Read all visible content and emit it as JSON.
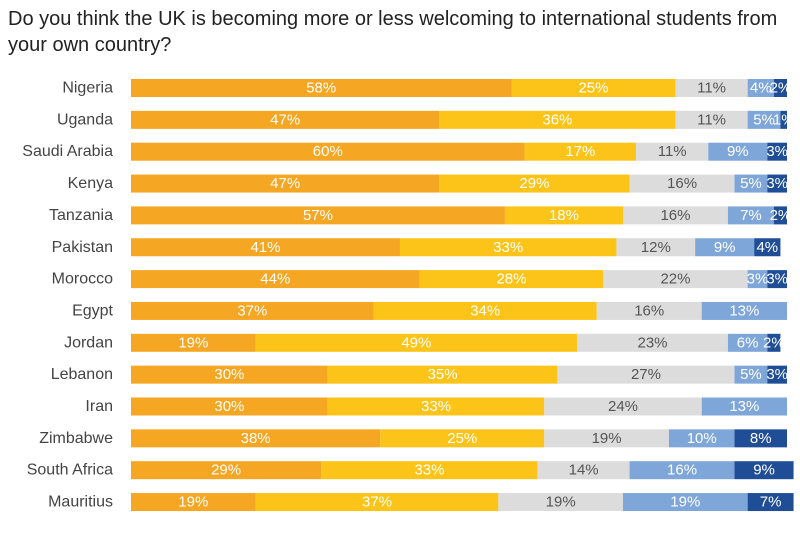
{
  "chart_data": {
    "type": "bar",
    "orientation": "horizontal",
    "stacked": true,
    "title": "Do you think the UK is becoming more or less welcoming to international students from your own country?",
    "xlabel": "",
    "ylabel": "",
    "xlim": [
      0,
      100
    ],
    "grid": false,
    "legend": "none",
    "categories": [
      "Nigeria",
      "Uganda",
      "Saudi Arabia",
      "Kenya",
      "Tanzania",
      "Pakistan",
      "Morocco",
      "Egypt",
      "Jordan",
      "Lebanon",
      "Iran",
      "Zimbabwe",
      "South Africa",
      "Mauritius"
    ],
    "series": [
      {
        "color": "#f5a623",
        "label_color": "#ffffff",
        "values": [
          58,
          47,
          60,
          47,
          57,
          41,
          44,
          37,
          19,
          30,
          30,
          38,
          29,
          19
        ]
      },
      {
        "color": "#fcc419",
        "label_color": "#ffffff",
        "values": [
          25,
          36,
          17,
          29,
          18,
          33,
          28,
          34,
          49,
          35,
          33,
          25,
          33,
          37
        ]
      },
      {
        "color": "#dcdcdc",
        "label_color": "#555555",
        "values": [
          11,
          11,
          11,
          16,
          16,
          12,
          22,
          16,
          23,
          27,
          24,
          19,
          14,
          19
        ]
      },
      {
        "color": "#7fa6d9",
        "label_color": "#ffffff",
        "values": [
          4,
          5,
          9,
          5,
          7,
          9,
          3,
          13,
          6,
          5,
          13,
          10,
          16,
          19
        ]
      },
      {
        "color": "#1f4e96",
        "label_color": "#ffffff",
        "values": [
          2,
          1,
          3,
          3,
          2,
          4,
          3,
          null,
          2,
          3,
          null,
          8,
          9,
          7
        ]
      }
    ]
  }
}
